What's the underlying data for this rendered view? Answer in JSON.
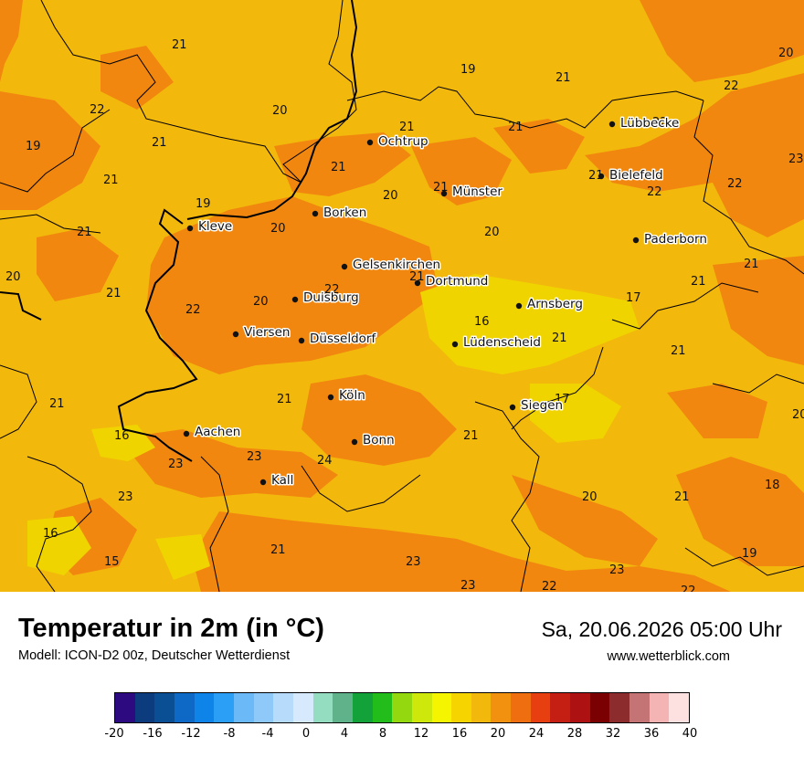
{
  "title": "Temperatur in 2m (in °C)",
  "subtitle": "Modell: ICON-D2 00z, Deutscher Wetterdienst",
  "datetime": "Sa, 20.06.2026 05:00 Uhr",
  "website": "www.wetterblick.com",
  "colors": {
    "temp_15_16": "#f0d400",
    "temp_17_18": "#f2cc00",
    "temp_19_20": "#f3b80c",
    "temp_21_22": "#f1870f",
    "border": "#000000"
  },
  "cities": [
    {
      "name": "Lübbecke"
    },
    {
      "name": "Ochtrup"
    },
    {
      "name": "Bielefeld"
    },
    {
      "name": "Münster"
    },
    {
      "name": "Kleve"
    },
    {
      "name": "Borken"
    },
    {
      "name": "Paderborn"
    },
    {
      "name": "Gelsenkirchen"
    },
    {
      "name": "Dortmund"
    },
    {
      "name": "Duisburg"
    },
    {
      "name": "Arnsberg"
    },
    {
      "name": "Viersen"
    },
    {
      "name": "Düsseldorf"
    },
    {
      "name": "Lüdenscheid"
    },
    {
      "name": "Köln"
    },
    {
      "name": "Siegen"
    },
    {
      "name": "Aachen"
    },
    {
      "name": "Bonn"
    },
    {
      "name": "Kall"
    }
  ],
  "values": [
    "21",
    "19",
    "20",
    "21",
    "21",
    "22",
    "22",
    "20",
    "19",
    "21",
    "21",
    "21",
    "21",
    "21",
    "22",
    "23",
    "21",
    "19",
    "20",
    "22",
    "22",
    "20",
    "20",
    "21",
    "21",
    "20",
    "21",
    "22",
    "22",
    "20",
    "17",
    "21",
    "16",
    "21",
    "21",
    "21",
    "17",
    "20",
    "21",
    "21",
    "16",
    "23",
    "24",
    "23",
    "21",
    "20",
    "21",
    "18",
    "23",
    "16",
    "15",
    "21",
    "23",
    "23",
    "22",
    "23",
    "22",
    "19"
  ],
  "legend": {
    "ticks": [
      "-20",
      "-16",
      "-12",
      "-8",
      "-4",
      "0",
      "4",
      "8",
      "12",
      "16",
      "20",
      "24",
      "28",
      "32",
      "36",
      "40"
    ],
    "colors": [
      "#2d0a80",
      "#0c3b7e",
      "#0a4f94",
      "#0d69c5",
      "#0e84e9",
      "#2b9ef5",
      "#6cb9f8",
      "#8fc9f9",
      "#b6dbfb",
      "#d7e9fc",
      "#94ddc0",
      "#5fb28a",
      "#13a23a",
      "#22bd1a",
      "#94d80f",
      "#cde80a",
      "#f5f500",
      "#f5d400",
      "#f3b80c",
      "#f2900f",
      "#ef6e10",
      "#e83f10",
      "#c51f14",
      "#ae1111",
      "#7b0002",
      "#8c2c2c",
      "#c47474",
      "#f5b4b4",
      "#fde0e0"
    ]
  }
}
